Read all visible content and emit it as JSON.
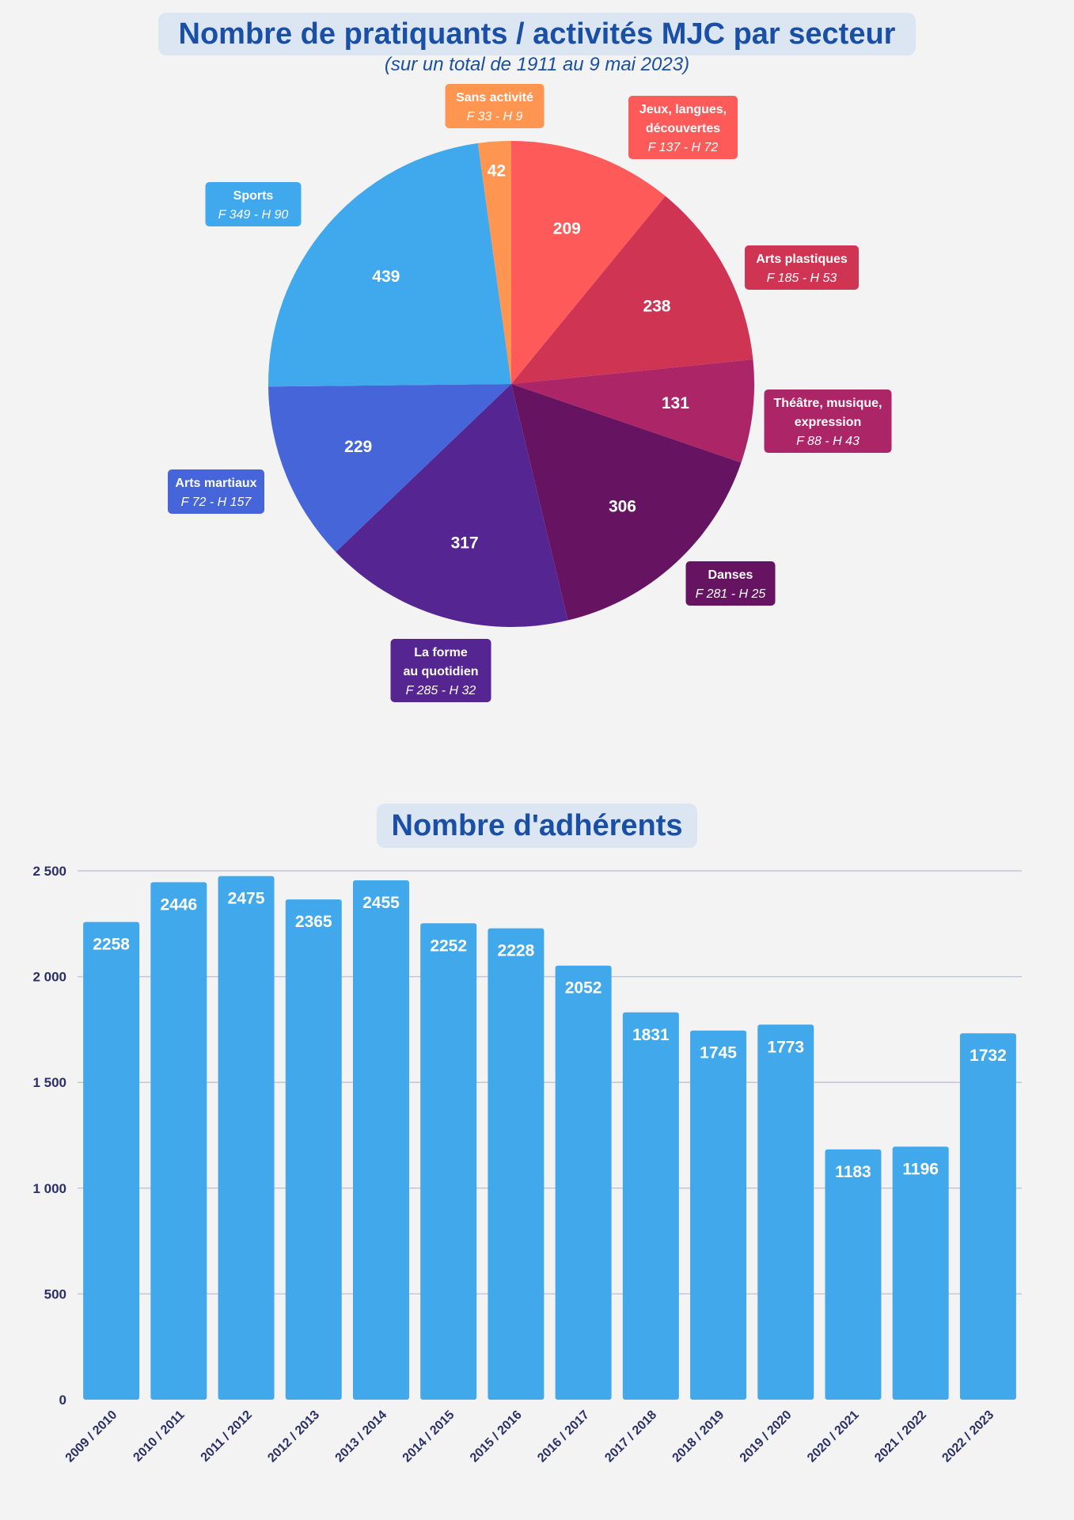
{
  "pie_title": "Nombre de pratiquants / activités MJC par secteur",
  "pie_subtitle": "(sur un total de 1911 au 9 mai 2023)",
  "bar_title": "Nombre d'adhérents",
  "chart_data": [
    {
      "type": "pie",
      "title": "Nombre de pratiquants / activités MJC par secteur",
      "subtitle": "(sur un total de 1911 au 9 mai 2023)",
      "slices": [
        {
          "label": "Jeux, langues, découvertes",
          "label_lines": [
            "Jeux, langues,",
            "découvertes"
          ],
          "detail": "F 137 - H 72",
          "value": 209,
          "color": "#fe5a59"
        },
        {
          "label": "Arts plastiques",
          "label_lines": [
            "Arts plastiques"
          ],
          "detail": "F 185 - H 53",
          "value": 238,
          "color": "#cf3553"
        },
        {
          "label": "Théâtre, musique, expression",
          "label_lines": [
            "Théâtre, musique,",
            "expression"
          ],
          "detail": "F 88 - H 43",
          "value": 131,
          "color": "#ac2567"
        },
        {
          "label": "Danses",
          "label_lines": [
            "Danses"
          ],
          "detail": "F 281 - H 25",
          "value": 306,
          "color": "#661461"
        },
        {
          "label": "La forme au quotidien",
          "label_lines": [
            "La forme",
            "au quotidien"
          ],
          "detail": "F 285 - H 32",
          "value": 317,
          "color": "#552592"
        },
        {
          "label": "Arts martiaux",
          "label_lines": [
            "Arts martiaux"
          ],
          "detail": "F 72 - H 157",
          "value": 229,
          "color": "#4565d8"
        },
        {
          "label": "Sports",
          "label_lines": [
            "Sports"
          ],
          "detail": "F 349 - H 90",
          "value": 439,
          "color": "#40a8ec"
        },
        {
          "label": "Sans activité",
          "label_lines": [
            "Sans activité"
          ],
          "detail": "F 33 - H 9",
          "value": 42,
          "color": "#fe9550"
        }
      ]
    },
    {
      "type": "bar",
      "title": "Nombre d'adhérents",
      "categories": [
        "2009 / 2010",
        "2010 / 2011",
        "2011 / 2012",
        "2012 / 2013",
        "2013 / 2014",
        "2014 / 2015",
        "2015 / 2016",
        "2016 / 2017",
        "2017 / 2018",
        "2018 / 2019",
        "2019 / 2020",
        "2020 / 2021",
        "2021 / 2022",
        "2022 / 2023"
      ],
      "values": [
        2258,
        2446,
        2475,
        2365,
        2455,
        2252,
        2228,
        2052,
        1831,
        1745,
        1773,
        1183,
        1196,
        1732
      ],
      "yticks": [
        "0",
        "500",
        "1 000",
        "1 500",
        "2 000",
        "2 500"
      ],
      "ylim": [
        0,
        2500
      ],
      "grid": true,
      "bar_color": "#42a8ec",
      "grid_color": "#c4c6d6"
    }
  ]
}
